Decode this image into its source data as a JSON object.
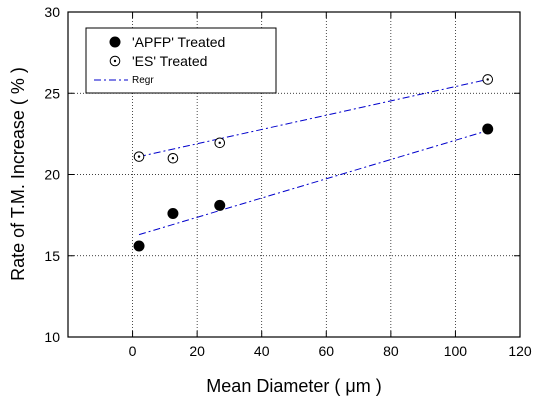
{
  "chart_data": {
    "type": "scatter",
    "xlabel": "Mean Diameter ( μm )",
    "ylabel": "Rate of T.M. Increase ( % )",
    "xlim": [
      -20,
      120
    ],
    "ylim": [
      10,
      30
    ],
    "xticks": [
      0,
      20,
      40,
      60,
      80,
      100,
      120
    ],
    "yticks": [
      10,
      15,
      20,
      25,
      30
    ],
    "grid": true,
    "legend_position": "top-left",
    "series": [
      {
        "name": "'APFP' Treated",
        "marker": "filled-circle",
        "color": "#000000",
        "x": [
          2,
          12.5,
          27,
          110
        ],
        "y": [
          15.6,
          17.6,
          18.1,
          22.8
        ],
        "regression": {
          "x": [
            2,
            110
          ],
          "y": [
            16.3,
            22.7
          ]
        }
      },
      {
        "name": "'ES' Treated",
        "marker": "dotted-open-circle",
        "color": "#000000",
        "x": [
          2,
          12.5,
          27,
          110
        ],
        "y": [
          21.1,
          21.0,
          21.95,
          25.85
        ],
        "regression": {
          "x": [
            2,
            110
          ],
          "y": [
            21.1,
            25.85
          ]
        }
      }
    ],
    "regression_label": "Regr",
    "regression_color": "#0000cc"
  }
}
